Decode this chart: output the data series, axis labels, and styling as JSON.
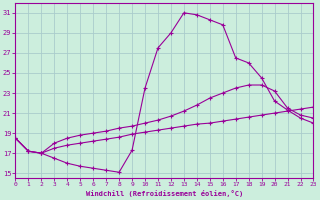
{
  "xlabel": "Windchill (Refroidissement éolien,°C)",
  "bg_color": "#cceedd",
  "grid_color": "#aacccc",
  "line_color": "#990099",
  "xlim": [
    0,
    23
  ],
  "ylim": [
    14.5,
    32
  ],
  "yticks": [
    15,
    17,
    19,
    21,
    23,
    25,
    27,
    29,
    31
  ],
  "xticks": [
    0,
    1,
    2,
    3,
    4,
    5,
    6,
    7,
    8,
    9,
    10,
    11,
    12,
    13,
    14,
    15,
    16,
    17,
    18,
    19,
    20,
    21,
    22,
    23
  ],
  "line1_x": [
    0,
    1,
    2,
    3,
    4,
    5,
    6,
    7,
    8,
    9,
    10,
    11,
    12,
    13,
    14,
    15,
    16,
    17,
    18,
    19,
    20,
    21,
    22,
    23
  ],
  "line1_y": [
    18.5,
    17.2,
    17.0,
    16.5,
    16.0,
    15.7,
    15.5,
    15.3,
    15.1,
    17.3,
    23.5,
    27.5,
    29.0,
    31.0,
    30.8,
    30.3,
    29.8,
    26.5,
    26.0,
    24.5,
    22.2,
    21.3,
    20.5,
    20.0
  ],
  "line2_x": [
    0,
    1,
    2,
    3,
    4,
    5,
    6,
    7,
    8,
    9,
    10,
    11,
    12,
    13,
    14,
    15,
    16,
    17,
    18,
    19,
    20,
    21,
    22,
    23
  ],
  "line2_y": [
    18.5,
    17.2,
    17.0,
    18.0,
    18.5,
    18.8,
    19.0,
    19.2,
    19.5,
    19.7,
    20.0,
    20.3,
    20.7,
    21.2,
    21.8,
    22.5,
    23.0,
    23.5,
    23.8,
    23.8,
    23.2,
    21.5,
    20.8,
    20.5
  ],
  "line3_x": [
    0,
    1,
    2,
    3,
    4,
    5,
    6,
    7,
    8,
    9,
    10,
    11,
    12,
    13,
    14,
    15,
    16,
    17,
    18,
    19,
    20,
    21,
    22,
    23
  ],
  "line3_y": [
    18.5,
    17.2,
    17.0,
    17.5,
    17.8,
    18.0,
    18.2,
    18.4,
    18.6,
    18.9,
    19.1,
    19.3,
    19.5,
    19.7,
    19.9,
    20.0,
    20.2,
    20.4,
    20.6,
    20.8,
    21.0,
    21.2,
    21.4,
    21.6
  ]
}
